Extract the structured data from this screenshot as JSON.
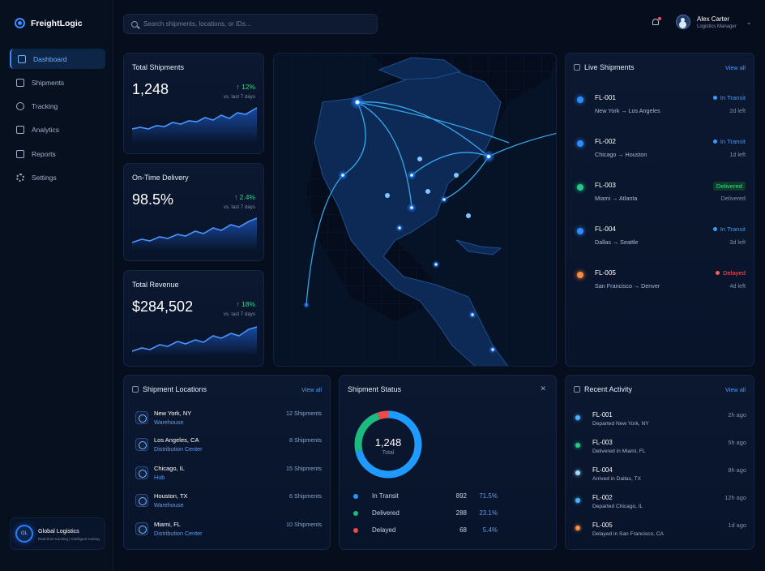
{
  "app": {
    "name": "FreightLogic"
  },
  "sidebar": {
    "items": [
      {
        "label": "Dashboard",
        "icon": "dashboard-icon",
        "active": true
      },
      {
        "label": "Shipments",
        "icon": "box-icon"
      },
      {
        "label": "Tracking",
        "icon": "target-icon"
      },
      {
        "label": "Analytics",
        "icon": "bar-chart-icon"
      },
      {
        "label": "Reports",
        "icon": "file-icon"
      },
      {
        "label": "Settings",
        "icon": "gear-icon"
      }
    ],
    "org": {
      "badge": "GL",
      "name": "Global Logistics",
      "subtitle": "Real-time tracking | Intelligent routing"
    }
  },
  "header": {
    "search_placeholder": "Search shipments, locations, or IDs...",
    "user": {
      "name": "Alex Carter",
      "role": "Logistics Manager"
    }
  },
  "stats": [
    {
      "label": "Total Shipments",
      "value": "1,248",
      "delta": "↑ 12%",
      "period": "vs. last 7 days"
    },
    {
      "label": "On-Time Delivery",
      "value": "98.5%",
      "delta": "↑ 2.4%",
      "period": "vs. last 7 days"
    },
    {
      "label": "Total Revenue",
      "value": "$284,502",
      "delta": "↑ 18%",
      "period": "vs. last 7 days"
    }
  ],
  "live": {
    "title": "Live Shipments",
    "view_all": "View all",
    "items": [
      {
        "id": "FL-001",
        "route": "New York → Los Angeles",
        "status": "In Transit",
        "eta": "2d left",
        "color": "#2f8cff"
      },
      {
        "id": "FL-002",
        "route": "Chicago → Houston",
        "status": "In Transit",
        "eta": "1d left",
        "color": "#2f8cff"
      },
      {
        "id": "FL-003",
        "route": "Miami → Atlanta",
        "status": "Delivered",
        "eta": "Delivered",
        "color": "#26c987"
      },
      {
        "id": "FL-004",
        "route": "Dallas → Seattle",
        "status": "In Transit",
        "eta": "3d left",
        "color": "#2f8cff"
      },
      {
        "id": "FL-005",
        "route": "San Francisco → Denver",
        "status": "Delayed",
        "eta": "4d left",
        "color": "#ff4f5e"
      }
    ]
  },
  "locations": {
    "title": "Shipment Locations",
    "view_all": "View all",
    "items": [
      {
        "name": "New York, NY",
        "type": "Warehouse",
        "count": "12 Shipments"
      },
      {
        "name": "Los Angeles, CA",
        "type": "Distribution Center",
        "count": "8 Shipments"
      },
      {
        "name": "Chicago, IL",
        "type": "Hub",
        "count": "15 Shipments"
      },
      {
        "name": "Houston, TX",
        "type": "Warehouse",
        "count": "6 Shipments"
      },
      {
        "name": "Miami, FL",
        "type": "Distribution Center",
        "count": "10 Shipments"
      }
    ]
  },
  "status": {
    "title": "Shipment Status",
    "total": "1,248",
    "total_label": "Total",
    "legend": [
      {
        "name": "In Transit",
        "count": "892",
        "percent": "71.5%",
        "value": 71.5,
        "color": "#1f9bff"
      },
      {
        "name": "Delivered",
        "count": "288",
        "percent": "23.1%",
        "value": 23.1,
        "color": "#1dba7f"
      },
      {
        "name": "Delayed",
        "count": "68",
        "percent": "5.4%",
        "value": 5.4,
        "color": "#ef4b4b"
      }
    ]
  },
  "activity": {
    "title": "Recent Activity",
    "view_all": "View all",
    "items": [
      {
        "id": "FL-001",
        "desc": "Departed New York, NY",
        "time": "2h ago",
        "color": "#4fb1ff"
      },
      {
        "id": "FL-003",
        "desc": "Delivered in Miami, FL",
        "time": "5h ago",
        "color": "#26c987"
      },
      {
        "id": "FL-004",
        "desc": "Arrived in Dallas, TX",
        "time": "8h ago",
        "color": "#9fd8ff"
      },
      {
        "id": "FL-002",
        "desc": "Departed Chicago, IL",
        "time": "12h ago",
        "color": "#4fb1ff"
      },
      {
        "id": "FL-005",
        "desc": "Delayed in San Francisco, CA",
        "time": "1d ago",
        "color": "#ff8d4d"
      }
    ]
  }
}
